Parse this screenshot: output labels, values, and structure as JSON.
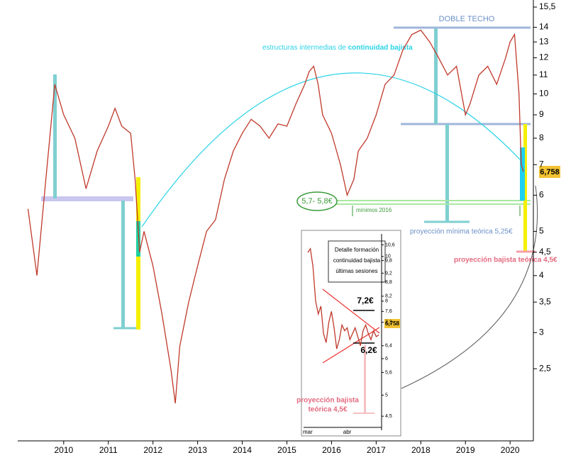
{
  "chart_data": [
    {
      "type": "line",
      "log_y": true,
      "color": "#c0392b",
      "x": [
        2009.2,
        2009.4,
        2009.6,
        2009.8,
        2010.0,
        2010.25,
        2010.5,
        2010.75,
        2011.0,
        2011.15,
        2011.3,
        2011.5,
        2011.6,
        2011.7,
        2011.8,
        2012.0,
        2012.2,
        2012.4,
        2012.5,
        2012.6,
        2012.8,
        2013.0,
        2013.2,
        2013.4,
        2013.6,
        2013.8,
        2014.0,
        2014.2,
        2014.4,
        2014.6,
        2014.8,
        2015.0,
        2015.2,
        2015.4,
        2015.5,
        2015.6,
        2015.7,
        2015.8,
        2016.0,
        2016.2,
        2016.35,
        2016.5,
        2016.6,
        2016.8,
        2017.0,
        2017.2,
        2017.4,
        2017.6,
        2017.8,
        2018.0,
        2018.2,
        2018.4,
        2018.6,
        2018.8,
        2019.0,
        2019.1,
        2019.3,
        2019.5,
        2019.7,
        2019.9,
        2020.0,
        2020.1,
        2020.2,
        2020.25,
        2020.3
      ],
      "values": [
        5.6,
        4.0,
        6.5,
        10.5,
        9,
        8,
        6.2,
        7.5,
        8.5,
        9.3,
        8.5,
        8.2,
        6.5,
        4.5,
        5,
        4.2,
        3.3,
        2.5,
        2.1,
        2.8,
        3.5,
        4.2,
        5,
        5.3,
        6.5,
        7.5,
        8.2,
        8.8,
        8.5,
        8,
        8.6,
        8.5,
        9.5,
        10.5,
        11.2,
        11.5,
        10.5,
        9,
        8.2,
        7,
        6,
        6.5,
        7.5,
        8,
        9,
        10.5,
        11,
        12.5,
        13.5,
        13.8,
        13,
        12,
        11,
        11.5,
        9,
        9.5,
        11,
        11.5,
        10.5,
        12,
        13,
        13.5,
        10,
        7,
        6.758
      ],
      "xlim": [
        2008.97,
        2020.49
      ],
      "xticks": [
        2010,
        2011,
        2012,
        2013,
        2014,
        2015,
        2016,
        2017,
        2018,
        2019,
        2020
      ],
      "ylim": [
        1.75,
        15.5
      ],
      "yticks": [
        {
          "value": 15.5,
          "label": "15,5"
        },
        14,
        13,
        12,
        11,
        10,
        9,
        8,
        7,
        6,
        5,
        {
          "value": 4.5,
          "label": "4,5"
        },
        4,
        {
          "value": 3.5,
          "label": "3,5"
        },
        3,
        {
          "value": 2.5,
          "label": "2,5"
        }
      ],
      "last_price_label": "6,758",
      "annotations": {
        "double_top": "DOBLE TECHO",
        "structures": "estructuras intermedias de",
        "structures_bold": "continuidad bajista",
        "support": "5,7- 5,8€",
        "lows": "mínimos 2016",
        "min_projection": "proyección mínima teórica 5,25€",
        "bear_projection": "proyección bajista teórica 4,5€"
      }
    },
    {
      "type": "line",
      "log_y": true,
      "color": "#c0392b",
      "categories": [
        "mar",
        null,
        null,
        null,
        null,
        null,
        null,
        null,
        null,
        null,
        null,
        null,
        null,
        null,
        null,
        "abr",
        null,
        null,
        null,
        null,
        null,
        null,
        null,
        null,
        null,
        null,
        null,
        null
      ],
      "values": [
        10.2,
        10.4,
        9.5,
        8.0,
        7.5,
        7.8,
        6.8,
        6.5,
        7.2,
        7.6,
        7.0,
        6.3,
        6.6,
        7.1,
        6.9,
        7.0,
        6.6,
        6.8,
        7.0,
        6.7,
        6.4,
        6.9,
        7.1,
        6.8,
        6.6,
        6.9,
        6.7,
        6.758
      ],
      "ylim": [
        4.3,
        11
      ],
      "yticks": [
        {
          "value": 10.6,
          "label": "10,6"
        },
        10,
        {
          "value": 9.8,
          "label": "9,8"
        },
        {
          "value": 9.2,
          "label": "9,2"
        },
        {
          "value": 8.8,
          "label": "8,8"
        },
        {
          "value": 8.2,
          "label": "8,2"
        },
        8,
        {
          "value": 7.6,
          "label": "7,6"
        },
        {
          "value": 7.2,
          "label": "7,2"
        },
        {
          "value": 6.4,
          "label": "6,4"
        },
        6,
        {
          "value": 5.6,
          "label": "5,6"
        },
        5,
        {
          "value": 4.5,
          "label": "4,5"
        }
      ],
      "last_price_label": "6,758",
      "annotations": {
        "box_line1": "Detalle formación",
        "box_line2": "continuidad bajista",
        "box_line3": "últimas sesiones",
        "upper": "7,2€",
        "lower": "6,2€",
        "proj_line1": "proyección bajista",
        "proj_line2": "teórica 4,5€"
      }
    }
  ]
}
